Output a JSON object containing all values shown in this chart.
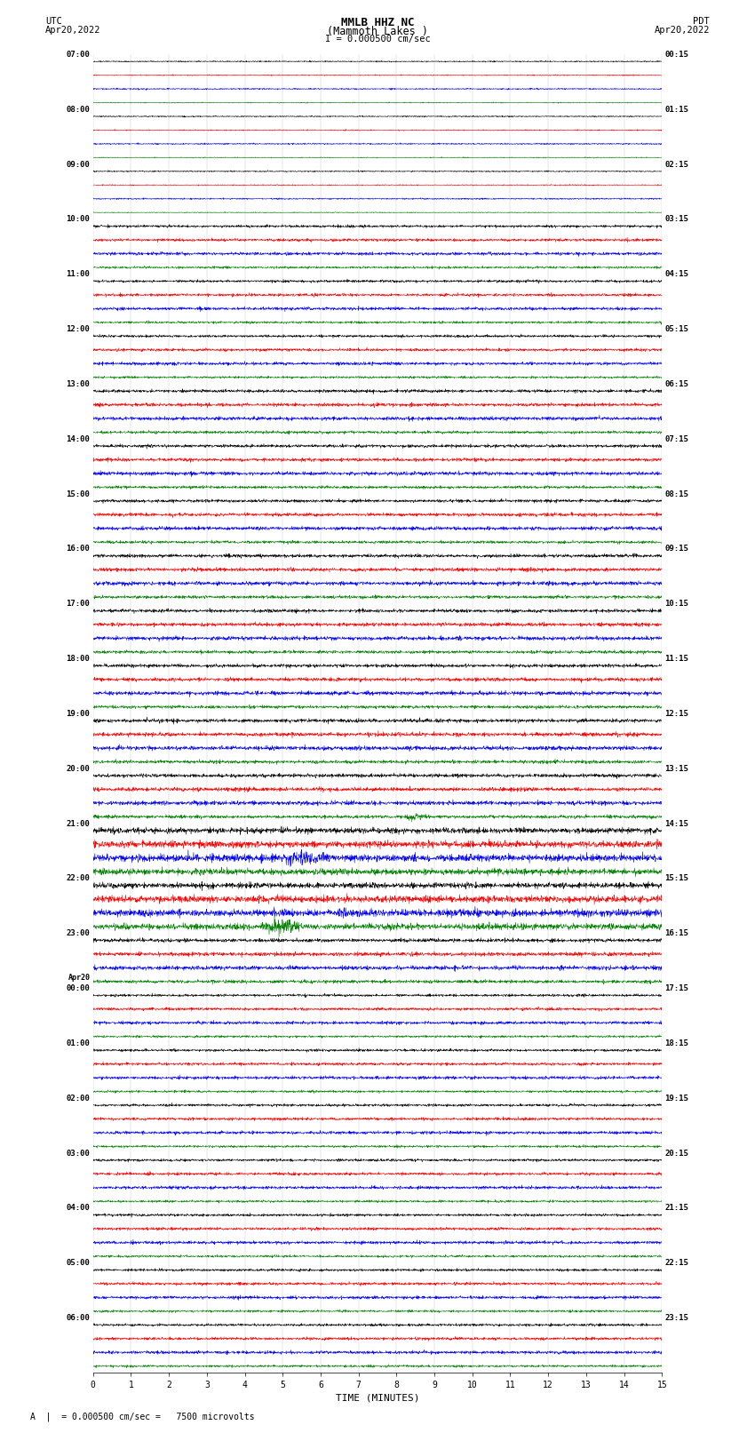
{
  "title_line1": "MMLB HHZ NC",
  "title_line2": "(Mammoth Lakes )",
  "title_line3": "I = 0.000500 cm/sec",
  "label_utc": "UTC",
  "label_utc_date": "Apr20,2022",
  "label_pdt": "PDT",
  "label_pdt_date": "Apr20,2022",
  "xlabel": "TIME (MINUTES)",
  "footer_text": "= 0.000500 cm/sec =   7500 microvolts",
  "bg_color": "#ffffff",
  "trace_colors": [
    "black",
    "red",
    "blue",
    "green"
  ],
  "left_labels": [
    [
      "07:00",
      null,
      null,
      null
    ],
    [
      "08:00",
      null,
      null,
      null
    ],
    [
      "09:00",
      null,
      null,
      null
    ],
    [
      "10:00",
      null,
      null,
      null
    ],
    [
      "11:00",
      null,
      null,
      null
    ],
    [
      "12:00",
      null,
      null,
      null
    ],
    [
      "13:00",
      null,
      null,
      null
    ],
    [
      "14:00",
      null,
      null,
      null
    ],
    [
      "15:00",
      null,
      null,
      null
    ],
    [
      "16:00",
      null,
      null,
      null
    ],
    [
      "17:00",
      null,
      null,
      null
    ],
    [
      "18:00",
      null,
      null,
      null
    ],
    [
      "19:00",
      null,
      null,
      null
    ],
    [
      "20:00",
      null,
      null,
      null
    ],
    [
      "21:00",
      null,
      null,
      null
    ],
    [
      "22:00",
      null,
      null,
      null
    ],
    [
      "23:00",
      null,
      null,
      null
    ],
    [
      "Apr20\n00:00",
      null,
      null,
      null
    ],
    [
      "01:00",
      null,
      null,
      null
    ],
    [
      "02:00",
      null,
      null,
      null
    ],
    [
      "03:00",
      null,
      null,
      null
    ],
    [
      "04:00",
      null,
      null,
      null
    ],
    [
      "05:00",
      null,
      null,
      null
    ],
    [
      "06:00",
      null,
      null,
      null
    ]
  ],
  "right_labels": [
    "00:15",
    "01:15",
    "02:15",
    "03:15",
    "04:15",
    "05:15",
    "06:15",
    "07:15",
    "08:15",
    "09:15",
    "10:15",
    "11:15",
    "12:15",
    "13:15",
    "14:15",
    "15:15",
    "16:15",
    "17:15",
    "18:15",
    "19:15",
    "20:15",
    "21:15",
    "22:15",
    "23:15"
  ],
  "xmin": 0,
  "xmax": 15,
  "xticks": [
    0,
    1,
    2,
    3,
    4,
    5,
    6,
    7,
    8,
    9,
    10,
    11,
    12,
    13,
    14,
    15
  ],
  "num_hours": 24,
  "traces_per_hour": 4,
  "samples_per_trace": 1800,
  "base_amp": 0.06,
  "noise_seed": 7,
  "grid_color": "#888888",
  "grid_alpha": 0.5
}
